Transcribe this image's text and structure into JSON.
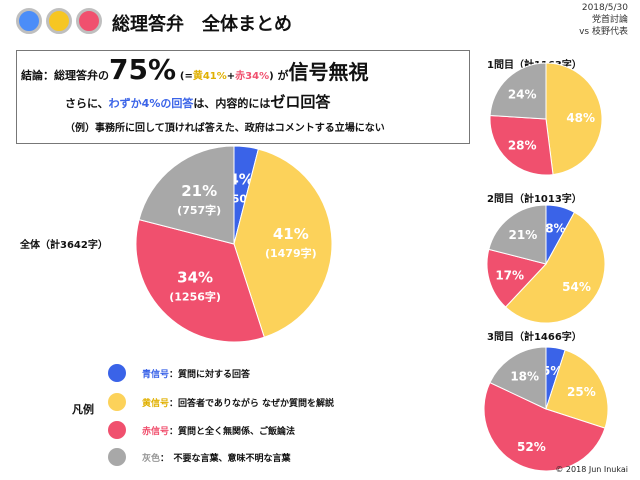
{
  "header": {
    "title": "総理答弁　全体まとめ",
    "date": "2018/5/30",
    "event": "党首討論",
    "opponent": "vs 枝野代表",
    "dot_colors": [
      "#4b8df8",
      "#f6c623",
      "#f0506e"
    ]
  },
  "summary": {
    "conclusion_prefix": "結論：総理答弁の",
    "conclusion_pct": "75%",
    "paren_open": "(=",
    "yellow_part": "黄41%",
    "plus": "+",
    "red_part": "赤34%",
    "paren_close": ")",
    "ga": "が",
    "conclusion_title": "信号無視",
    "line2_prefix": "さらに、",
    "line2_blue": "わずか4%の回答",
    "line2_mid": "は、内容的には",
    "line2_big": "ゼロ回答",
    "line3": "（例）事務所に回して頂ければ答えた、政府はコメントする立場にない"
  },
  "colors": {
    "blue": "#3a63e8",
    "yellow": "#fcd25a",
    "red": "#f0506e",
    "gray": "#a8a8a8"
  },
  "chart_data": [
    {
      "type": "pie",
      "id": "overall",
      "title": "全体（計3642字）",
      "slices": [
        {
          "category": "blue",
          "percent": 4,
          "chars": 150,
          "label": "4%",
          "sublabel": "(150字)"
        },
        {
          "category": "yellow",
          "percent": 41,
          "chars": 1479,
          "label": "41%",
          "sublabel": "(1479字)"
        },
        {
          "category": "red",
          "percent": 34,
          "chars": 1256,
          "label": "34%",
          "sublabel": "(1256字)"
        },
        {
          "category": "gray",
          "percent": 21,
          "chars": 757,
          "label": "21%",
          "sublabel": "(757字)"
        }
      ]
    },
    {
      "type": "pie",
      "id": "q1",
      "title": "1問目（計1163字）",
      "slices": [
        {
          "category": "yellow",
          "percent": 48,
          "label": "48%"
        },
        {
          "category": "red",
          "percent": 28,
          "label": "28%"
        },
        {
          "category": "gray",
          "percent": 24,
          "label": "24%"
        }
      ]
    },
    {
      "type": "pie",
      "id": "q2",
      "title": "2問目（計1013字）",
      "slices": [
        {
          "category": "blue",
          "percent": 8,
          "label": "8%"
        },
        {
          "category": "yellow",
          "percent": 54,
          "label": "54%"
        },
        {
          "category": "red",
          "percent": 17,
          "label": "17%"
        },
        {
          "category": "gray",
          "percent": 21,
          "label": "21%"
        }
      ]
    },
    {
      "type": "pie",
      "id": "q3",
      "title": "3問目（計1466字）",
      "slices": [
        {
          "category": "blue",
          "percent": 5,
          "label": "5%"
        },
        {
          "category": "yellow",
          "percent": 25,
          "label": "25%"
        },
        {
          "category": "red",
          "percent": 52,
          "label": "52%"
        },
        {
          "category": "gray",
          "percent": 18,
          "label": "18%"
        }
      ]
    }
  ],
  "legend": {
    "title": "凡例",
    "items": [
      {
        "category": "blue",
        "name": "青信号",
        "desc": "：質問に対する回答"
      },
      {
        "category": "yellow",
        "name": "黄信号",
        "desc": "：回答者でありながら なぜか質問を解説"
      },
      {
        "category": "red",
        "name": "赤信号",
        "desc": "：質問と全く無関係、ご飯論法"
      },
      {
        "category": "gray",
        "name": "灰色",
        "desc": "：　不要な言葉、意味不明な言葉"
      }
    ]
  },
  "copyright": "© 2018 Jun Inukai"
}
